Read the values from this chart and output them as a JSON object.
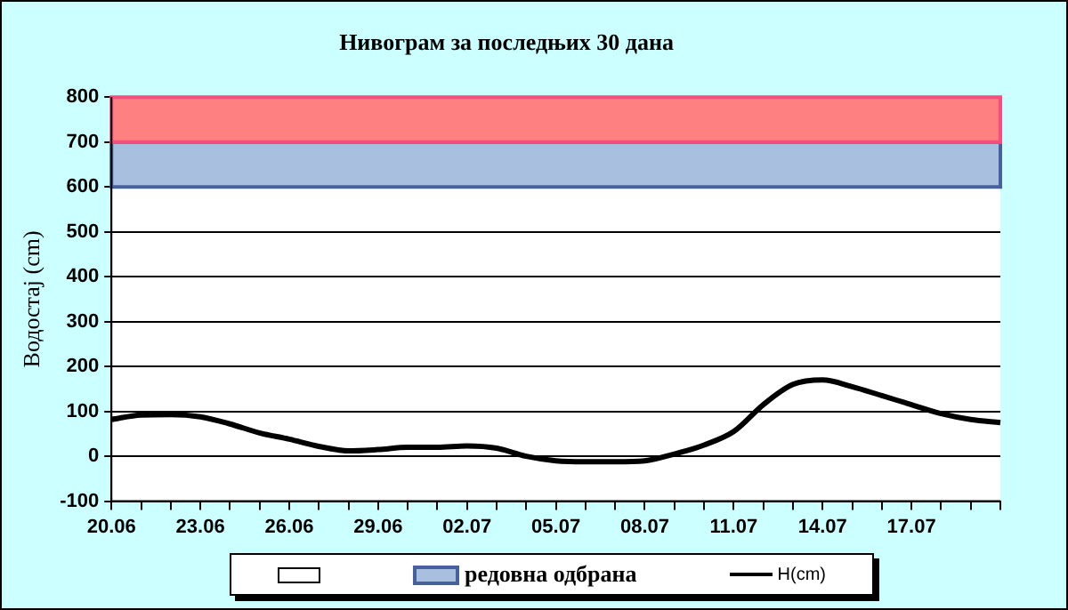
{
  "chart_data": {
    "type": "line",
    "title": "Нивограм за последњих 30 дана",
    "ylabel": "Водостај (cm)",
    "categories": [
      "20.06",
      null,
      null,
      "23.06",
      null,
      null,
      "26.06",
      null,
      null,
      "29.06",
      null,
      null,
      "02.07",
      null,
      null,
      "05.07",
      null,
      null,
      "08.07",
      null,
      null,
      "11.07",
      null,
      null,
      "14.07",
      null,
      null,
      "17.07",
      null,
      null,
      null
    ],
    "series": [
      {
        "name": "H(cm)",
        "color": "#000000",
        "values": [
          82,
          92,
          93,
          88,
          72,
          52,
          38,
          22,
          12,
          15,
          20,
          20,
          23,
          18,
          0,
          -10,
          -12,
          -12,
          -10,
          5,
          25,
          55,
          115,
          160,
          170,
          155,
          135,
          115,
          95,
          82,
          75
        ]
      }
    ],
    "bands": [
      {
        "axis": "y",
        "from": 600,
        "to": 700,
        "label": "редовна одбрана",
        "color": "#a9bfdf"
      },
      {
        "axis": "y",
        "from": 700,
        "to": 800,
        "color": "#ff8080"
      }
    ],
    "ylim": [
      -100,
      800
    ],
    "yticks": [
      -100,
      0,
      100,
      200,
      300,
      400,
      500,
      600,
      700,
      800
    ],
    "grid": "y",
    "legend": "bottom",
    "line_style": "solid",
    "marker": "none"
  }
}
